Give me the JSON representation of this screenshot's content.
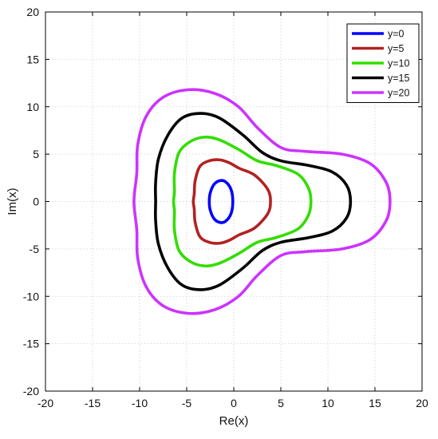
{
  "chart_data": {
    "type": "line",
    "title": "",
    "xlabel": "Re(x)",
    "ylabel": "Im(x)",
    "xlim": [
      -20,
      20
    ],
    "ylim": [
      -20,
      20
    ],
    "xticks": [
      -20,
      -15,
      -10,
      -5,
      0,
      5,
      10,
      15,
      20
    ],
    "yticks": [
      -20,
      -15,
      -10,
      -5,
      0,
      5,
      10,
      15,
      20
    ],
    "xtick_labels": [
      "-20",
      "-15",
      "-10",
      "-5",
      "0",
      "5",
      "10",
      "15",
      "20"
    ],
    "ytick_labels": [
      "-20",
      "-15",
      "-10",
      "-5",
      "0",
      "5",
      "10",
      "15",
      "20"
    ],
    "grid": true,
    "legend_position": "top-right",
    "series": [
      {
        "name": "y=0",
        "color": "#0000ff",
        "points": [
          [
            -0.1,
            0
          ],
          [
            -0.3,
            1.3
          ],
          [
            -0.9,
            2.1
          ],
          [
            -1.5,
            2.2
          ],
          [
            -2.1,
            1.8
          ],
          [
            -2.5,
            0.9
          ],
          [
            -2.6,
            0
          ],
          [
            -2.5,
            -0.9
          ],
          [
            -2.1,
            -1.8
          ],
          [
            -1.5,
            -2.2
          ],
          [
            -0.9,
            -2.1
          ],
          [
            -0.3,
            -1.3
          ],
          [
            -0.1,
            0
          ]
        ]
      },
      {
        "name": "y=5",
        "color": "#b22222",
        "points": [
          [
            3.9,
            0
          ],
          [
            3.6,
            1.3
          ],
          [
            2.2,
            2.8
          ],
          [
            0.6,
            3.5
          ],
          [
            -0.5,
            4.1
          ],
          [
            -1.5,
            4.4
          ],
          [
            -2.6,
            4.3
          ],
          [
            -3.6,
            3.7
          ],
          [
            -4.1,
            2.2
          ],
          [
            -4.2,
            0.8
          ],
          [
            -4.3,
            0
          ],
          [
            -4.2,
            -0.8
          ],
          [
            -4.1,
            -2.2
          ],
          [
            -3.6,
            -3.7
          ],
          [
            -2.6,
            -4.3
          ],
          [
            -1.5,
            -4.4
          ],
          [
            -0.5,
            -4.1
          ],
          [
            0.6,
            -3.5
          ],
          [
            2.2,
            -2.8
          ],
          [
            3.6,
            -1.3
          ],
          [
            3.9,
            0
          ]
        ]
      },
      {
        "name": "y=10",
        "color": "#33dd00",
        "points": [
          [
            8.2,
            0
          ],
          [
            7.9,
            1.5
          ],
          [
            6.8,
            2.9
          ],
          [
            4.5,
            3.8
          ],
          [
            2.5,
            4.3
          ],
          [
            0.5,
            5.5
          ],
          [
            -1.5,
            6.5
          ],
          [
            -3.0,
            6.8
          ],
          [
            -4.5,
            6.4
          ],
          [
            -5.8,
            5.2
          ],
          [
            -6.3,
            3.0
          ],
          [
            -6.3,
            1.0
          ],
          [
            -6.4,
            0
          ],
          [
            -6.3,
            -1.0
          ],
          [
            -6.3,
            -3.0
          ],
          [
            -5.8,
            -5.2
          ],
          [
            -4.5,
            -6.4
          ],
          [
            -3.0,
            -6.8
          ],
          [
            -1.5,
            -6.5
          ],
          [
            0.5,
            -5.5
          ],
          [
            2.5,
            -4.3
          ],
          [
            4.5,
            -3.8
          ],
          [
            6.8,
            -2.9
          ],
          [
            7.9,
            -1.5
          ],
          [
            8.2,
            0
          ]
        ]
      },
      {
        "name": "y=15",
        "color": "#000000",
        "points": [
          [
            12.4,
            0
          ],
          [
            12.0,
            1.7
          ],
          [
            10.5,
            3.1
          ],
          [
            8.0,
            3.8
          ],
          [
            5.0,
            4.3
          ],
          [
            3.0,
            5.2
          ],
          [
            1.0,
            7.0
          ],
          [
            -1.5,
            8.8
          ],
          [
            -3.5,
            9.3
          ],
          [
            -5.5,
            8.8
          ],
          [
            -7.0,
            7.0
          ],
          [
            -8.0,
            4.5
          ],
          [
            -8.3,
            2.0
          ],
          [
            -8.3,
            0
          ],
          [
            -8.3,
            -2.0
          ],
          [
            -8.0,
            -4.5
          ],
          [
            -7.0,
            -7.0
          ],
          [
            -5.5,
            -8.8
          ],
          [
            -3.5,
            -9.3
          ],
          [
            -1.5,
            -8.8
          ],
          [
            1.0,
            -7.0
          ],
          [
            3.0,
            -5.2
          ],
          [
            5.0,
            -4.3
          ],
          [
            8.0,
            -3.8
          ],
          [
            10.5,
            -3.1
          ],
          [
            12.0,
            -1.7
          ],
          [
            12.4,
            0
          ]
        ]
      },
      {
        "name": "y=20",
        "color": "#cc33ff",
        "points": [
          [
            16.6,
            0
          ],
          [
            16.2,
            2.0
          ],
          [
            14.5,
            4.0
          ],
          [
            11.5,
            5.0
          ],
          [
            7.5,
            5.3
          ],
          [
            5.0,
            5.7
          ],
          [
            2.5,
            7.8
          ],
          [
            0.5,
            10.0
          ],
          [
            -2.0,
            11.4
          ],
          [
            -4.8,
            11.8
          ],
          [
            -7.5,
            11.0
          ],
          [
            -9.3,
            9.0
          ],
          [
            -10.2,
            6.0
          ],
          [
            -10.3,
            3.0
          ],
          [
            -10.6,
            0
          ],
          [
            -10.3,
            -3.0
          ],
          [
            -10.2,
            -6.0
          ],
          [
            -9.3,
            -9.0
          ],
          [
            -7.5,
            -11.0
          ],
          [
            -4.8,
            -11.8
          ],
          [
            -2.0,
            -11.4
          ],
          [
            0.5,
            -10.0
          ],
          [
            2.5,
            -7.8
          ],
          [
            5.0,
            -5.7
          ],
          [
            7.5,
            -5.3
          ],
          [
            11.5,
            -5.0
          ],
          [
            14.5,
            -4.0
          ],
          [
            16.2,
            -2.0
          ],
          [
            16.6,
            0
          ]
        ]
      }
    ]
  }
}
